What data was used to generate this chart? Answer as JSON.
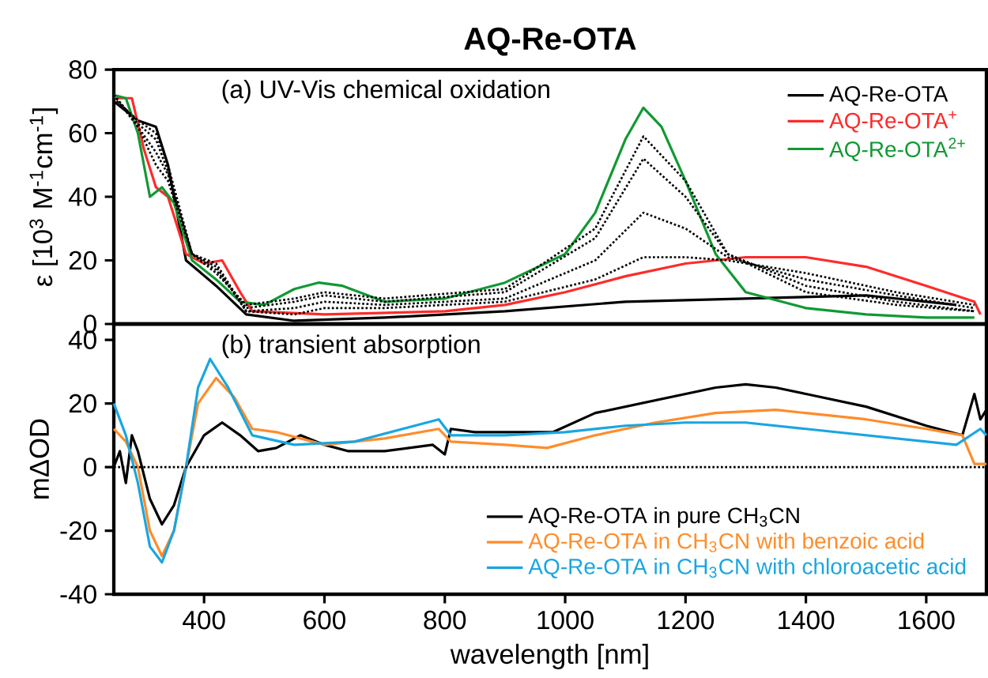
{
  "chart_data": [
    {
      "type": "line",
      "title": "AQ-Re-OTA",
      "ylabel": "ε [10$^{3}$ M$^{-1}$cm$^{-1}$]",
      "annotations": [
        "(a) UV-Vis chemical oxidation"
      ],
      "xlim": [
        250,
        1700
      ],
      "ylim": [
        0,
        80
      ],
      "yticks": [
        0,
        20,
        40,
        60,
        80
      ],
      "tick_labels": "y",
      "legend": "top right",
      "series": [
        {
          "name": "AQ-Re-OTA",
          "color": "#000000",
          "x": [
            250,
            290,
            320,
            340,
            370,
            420,
            470,
            550,
            700,
            900,
            1100,
            1300,
            1500,
            1650
          ],
          "values": [
            70,
            64,
            62,
            50,
            20,
            12,
            3,
            1,
            2,
            4,
            7,
            8,
            9,
            6
          ]
        },
        {
          "name": "AQ-Re-OTA$^{+}$",
          "color": "#ff2a2a",
          "x": [
            250,
            280,
            300,
            320,
            340,
            370,
            400,
            430,
            460,
            480,
            600,
            800,
            900,
            1000,
            1100,
            1200,
            1300,
            1400,
            1500,
            1600,
            1680,
            1690
          ],
          "values": [
            71,
            71,
            55,
            43,
            40,
            22,
            19,
            20,
            10,
            4,
            3,
            4,
            6,
            10,
            15,
            19,
            21,
            21,
            18,
            12,
            7,
            3
          ]
        },
        {
          "name": "AQ-Re-OTA$^{2+}$",
          "color": "#119933",
          "x": [
            250,
            270,
            290,
            310,
            330,
            350,
            380,
            420,
            460,
            500,
            550,
            590,
            630,
            700,
            800,
            900,
            1000,
            1050,
            1100,
            1130,
            1160,
            1200,
            1250,
            1300,
            1400,
            1500,
            1600,
            1680
          ],
          "values": [
            72,
            71,
            60,
            40,
            43,
            38,
            20,
            14,
            7,
            6,
            11,
            13,
            12,
            7,
            8,
            13,
            22,
            35,
            58,
            68,
            62,
            45,
            22,
            10,
            5,
            3,
            2,
            2
          ]
        },
        {
          "color": "#000000",
          "line_style": "dotted",
          "x": [
            250,
            290,
            320,
            340,
            380,
            420,
            470,
            550,
            600,
            700,
            900,
            1050,
            1130,
            1200,
            1270,
            1400,
            1550,
            1680
          ],
          "values": [
            72,
            62,
            50,
            45,
            22,
            16,
            6,
            8,
            10,
            8,
            11,
            30,
            59,
            45,
            22,
            10,
            6,
            4
          ]
        },
        {
          "color": "#000000",
          "line_style": "dotted",
          "x": [
            250,
            290,
            320,
            340,
            380,
            420,
            470,
            550,
            600,
            700,
            900,
            1050,
            1130,
            1200,
            1270,
            1400,
            1550,
            1680
          ],
          "values": [
            72,
            62,
            54,
            47,
            22,
            17,
            5,
            7,
            9,
            7,
            10,
            27,
            52,
            40,
            22,
            12,
            7,
            4
          ]
        },
        {
          "color": "#000000",
          "line_style": "dotted",
          "x": [
            250,
            290,
            320,
            340,
            380,
            420,
            470,
            550,
            600,
            700,
            900,
            1050,
            1130,
            1200,
            1270,
            1400,
            1550,
            1680
          ],
          "values": [
            72,
            63,
            58,
            48,
            22,
            18,
            4,
            5,
            7,
            6,
            8,
            20,
            35,
            30,
            21,
            14,
            9,
            5
          ]
        },
        {
          "color": "#000000",
          "line_style": "dotted",
          "x": [
            250,
            290,
            320,
            340,
            380,
            420,
            470,
            550,
            600,
            700,
            900,
            1050,
            1130,
            1200,
            1270,
            1400,
            1550,
            1680
          ],
          "values": [
            71,
            64,
            60,
            50,
            22,
            19,
            4,
            3,
            5,
            5,
            7,
            14,
            21,
            21,
            20,
            16,
            10,
            6
          ]
        }
      ]
    },
    {
      "type": "line",
      "xlabel": "wavelength [nm]",
      "ylabel": "mΔOD",
      "annotations": [
        "(b) transient absorption"
      ],
      "xlim": [
        250,
        1700
      ],
      "ylim": [
        -40,
        45
      ],
      "xticks": [
        400,
        600,
        800,
        1000,
        1200,
        1400,
        1600
      ],
      "yticks": [
        -40,
        -20,
        0,
        20,
        40
      ],
      "legend": "bottom right",
      "ref_lines": [
        {
          "axis": "y",
          "value": 0,
          "line_style": "dotted"
        }
      ],
      "series": [
        {
          "name": "AQ-Re-OTA in pure CH$_{3}$CN",
          "color": "#000000",
          "x": [
            250,
            260,
            270,
            280,
            290,
            310,
            330,
            350,
            370,
            400,
            430,
            460,
            490,
            520,
            560,
            600,
            640,
            700,
            780,
            800,
            810,
            850,
            900,
            980,
            1050,
            1150,
            1250,
            1300,
            1350,
            1400,
            1500,
            1600,
            1660,
            1680,
            1690,
            1700
          ],
          "values": [
            0,
            5,
            -5,
            10,
            5,
            -10,
            -18,
            -12,
            0,
            10,
            14,
            10,
            5,
            6,
            10,
            7,
            5,
            5,
            7,
            4,
            12,
            11,
            11,
            11,
            17,
            21,
            25,
            26,
            25,
            23,
            19,
            13,
            10,
            23,
            15,
            18
          ]
        },
        {
          "name": "AQ-Re-OTA in CH$_{3}$CN with benzoic acid",
          "color": "#ff8c2a",
          "x": [
            250,
            270,
            290,
            310,
            330,
            350,
            370,
            390,
            420,
            450,
            480,
            520,
            600,
            700,
            790,
            810,
            900,
            970,
            1050,
            1150,
            1250,
            1350,
            1400,
            1500,
            1600,
            1660,
            1680,
            1700
          ],
          "values": [
            12,
            8,
            0,
            -20,
            -28,
            -20,
            0,
            20,
            28,
            22,
            12,
            11,
            7,
            9,
            12,
            8,
            7,
            6,
            10,
            14,
            17,
            18,
            17,
            15,
            12,
            10,
            1,
            1
          ]
        },
        {
          "name": "AQ-Re-OTA in CH$_{3}$CN with chloroacetic acid",
          "color": "#1aa6e0",
          "x": [
            250,
            270,
            290,
            310,
            330,
            350,
            370,
            390,
            410,
            440,
            480,
            550,
            650,
            790,
            810,
            900,
            1000,
            1100,
            1200,
            1300,
            1400,
            1500,
            1600,
            1650,
            1690,
            1700
          ],
          "values": [
            20,
            10,
            -5,
            -25,
            -30,
            -20,
            0,
            25,
            34,
            25,
            10,
            7,
            8,
            15,
            10,
            10,
            11,
            13,
            14,
            14,
            12,
            10,
            8,
            7,
            12,
            10
          ]
        }
      ]
    }
  ]
}
